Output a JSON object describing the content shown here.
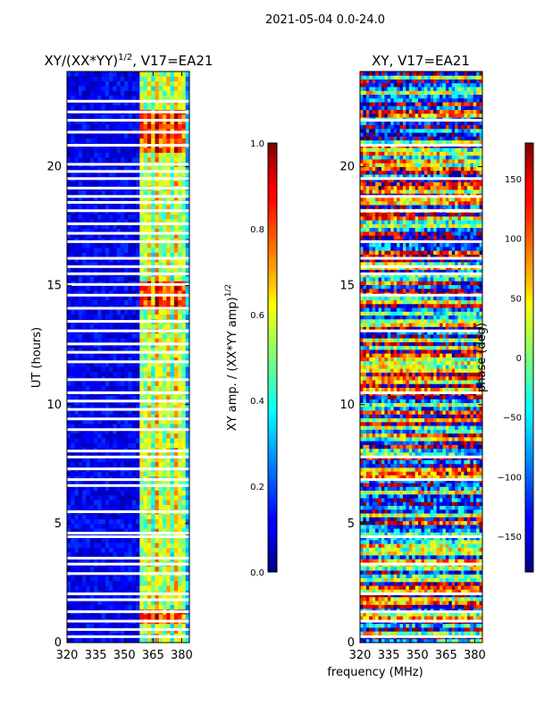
{
  "suptitle": "2021-05-04 0.0-24.0",
  "chart_data": [
    {
      "type": "heatmap",
      "title": "XY/(XX*YY)",
      "title_exponent": "1/2",
      "title_suffix": ", V17=EA21",
      "xlabel": "",
      "ylabel": "UT (hours)",
      "xlim": [
        320,
        384
      ],
      "ylim": [
        0,
        24
      ],
      "xticks": [
        "320",
        "335",
        "350",
        "365",
        "380"
      ],
      "xtick_values": [
        320,
        335,
        350,
        365,
        380
      ],
      "yticks": [
        "0",
        "5",
        "10",
        "15",
        "20"
      ],
      "ytick_values": [
        0,
        5,
        10,
        15,
        20
      ],
      "colorbar": {
        "label": "XY amp. / (XX*YY amp)",
        "label_exponent": "1/2",
        "range": [
          0.0,
          1.0
        ],
        "ticks": [
          "0.0",
          "0.2",
          "0.4",
          "0.6",
          "0.8",
          "1.0"
        ],
        "tick_values": [
          0.0,
          0.2,
          0.4,
          0.6,
          0.8,
          1.0
        ],
        "colormap": "jet"
      },
      "flagged_hours": [
        0.25,
        0.55,
        0.9,
        1.3,
        1.8,
        2.05,
        2.9,
        3.3,
        3.55,
        4.45,
        4.6,
        5.5,
        6.6,
        6.85,
        7.3,
        7.8,
        8.05,
        8.95,
        9.4,
        9.8,
        10.15,
        10.5,
        11.05,
        11.8,
        12.2,
        12.55,
        13.1,
        13.5,
        14.05,
        14.6,
        15.05,
        15.5,
        15.8,
        16.15,
        16.85,
        17.2,
        17.6,
        18.15,
        18.5,
        18.75,
        19.1,
        19.5,
        19.8,
        20.1,
        20.9,
        21.45,
        21.95,
        22.3,
        22.75
      ],
      "note": "amplitude low (blue) below 359 MHz, higher (green-red) in 359-382 MHz"
    },
    {
      "type": "heatmap",
      "title": "XY, V17=EA21",
      "xlabel": "frequency (MHz)",
      "ylabel": "",
      "xlim": [
        320,
        384
      ],
      "ylim": [
        0,
        24
      ],
      "xticks": [
        "320",
        "335",
        "350",
        "365",
        "380"
      ],
      "xtick_values": [
        320,
        335,
        350,
        365,
        380
      ],
      "yticks": [
        "0",
        "5",
        "10",
        "15",
        "20"
      ],
      "ytick_values": [
        0,
        5,
        10,
        15,
        20
      ],
      "colorbar": {
        "label": "phase (deg)",
        "range": [
          -180,
          180
        ],
        "ticks": [
          "−150",
          "−100",
          "−50",
          "0",
          "50",
          "100",
          "150"
        ],
        "tick_values": [
          -150,
          -100,
          -50,
          0,
          50,
          100,
          150
        ],
        "colormap": "jet"
      },
      "flagged_hours": [
        0.25,
        0.9,
        1.3,
        2.05,
        3.3,
        4.45,
        6.85,
        7.8,
        10.5,
        13.1,
        14.6,
        15.5,
        15.8,
        16.15,
        16.85,
        18.15,
        18.75,
        19.5,
        20.9,
        21.95
      ],
      "note": "phase spans full -180..180 range, noisy with banded structure"
    }
  ]
}
